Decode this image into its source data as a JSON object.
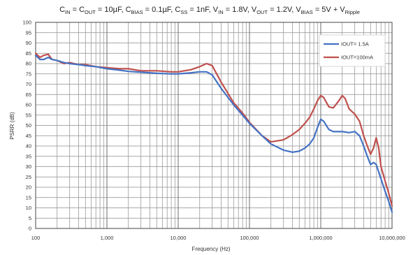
{
  "chart_data": {
    "type": "line",
    "title": {
      "parts": [
        {
          "t": "C",
          "sub": "IN"
        },
        {
          "t": " = C",
          "sub": "OUT"
        },
        {
          "t": " = 10µF, C",
          "sub": "BIAS"
        },
        {
          "t": " = 0.1µF, C",
          "sub": "SS"
        },
        {
          "t": " = 1nF, V",
          "sub": "IN"
        },
        {
          "t": " = 1.8V, V",
          "sub": "OUT"
        },
        {
          "t": " = 1.2V, V",
          "sub": "BIAS"
        },
        {
          "t": " = 5V + V",
          "sub": "Ripple"
        }
      ]
    },
    "xlabel": "Frequency (Hz)",
    "ylabel": "PSRR (dB)",
    "xscale": "log",
    "xlim": [
      100,
      10000000
    ],
    "ylim": [
      0,
      100
    ],
    "ytick_step": 5,
    "x_tick_labels": [
      "100",
      "1,000",
      "10,000",
      "100,000",
      "1,000,000",
      "10,000,000"
    ],
    "y_tick_labels": [
      "0",
      "5",
      "10",
      "15",
      "20",
      "25",
      "30",
      "35",
      "40",
      "45",
      "50",
      "55",
      "60",
      "65",
      "70",
      "75",
      "80",
      "85",
      "90",
      "95",
      "100"
    ],
    "grid": true,
    "legend_position": "top-right",
    "series": [
      {
        "name": "IOUT= 1.5A",
        "color": "#4472C4",
        "points": [
          [
            100,
            84
          ],
          [
            115,
            82
          ],
          [
            130,
            82
          ],
          [
            150,
            83
          ],
          [
            170,
            82
          ],
          [
            200,
            81.5
          ],
          [
            250,
            80.5
          ],
          [
            300,
            80
          ],
          [
            400,
            79.5
          ],
          [
            500,
            79
          ],
          [
            700,
            78.5
          ],
          [
            1000,
            77.5
          ],
          [
            1500,
            76.8
          ],
          [
            2000,
            76.2
          ],
          [
            3000,
            75.8
          ],
          [
            5000,
            75.3
          ],
          [
            8000,
            75
          ],
          [
            10000,
            75
          ],
          [
            15000,
            75.5
          ],
          [
            20000,
            76
          ],
          [
            25000,
            76
          ],
          [
            30000,
            74.5
          ],
          [
            40000,
            68
          ],
          [
            60000,
            60
          ],
          [
            80000,
            55
          ],
          [
            100000,
            51
          ],
          [
            150000,
            45
          ],
          [
            200000,
            41
          ],
          [
            300000,
            38
          ],
          [
            400000,
            37
          ],
          [
            500000,
            37.5
          ],
          [
            600000,
            39
          ],
          [
            700000,
            41
          ],
          [
            800000,
            44
          ],
          [
            900000,
            49
          ],
          [
            1000000,
            53
          ],
          [
            1100000,
            52
          ],
          [
            1300000,
            48
          ],
          [
            1500000,
            47
          ],
          [
            2000000,
            47
          ],
          [
            2500000,
            46.5
          ],
          [
            3000000,
            47
          ],
          [
            3500000,
            45
          ],
          [
            4000000,
            40
          ],
          [
            4500000,
            35
          ],
          [
            5000000,
            31
          ],
          [
            5500000,
            32
          ],
          [
            6000000,
            31
          ],
          [
            7000000,
            24
          ],
          [
            8000000,
            18
          ],
          [
            9000000,
            13
          ],
          [
            10000000,
            8
          ]
        ]
      },
      {
        "name": "IOUT=100mA",
        "color": "#C0504D",
        "points": [
          [
            100,
            85
          ],
          [
            115,
            83
          ],
          [
            130,
            84
          ],
          [
            150,
            84.5
          ],
          [
            170,
            82
          ],
          [
            200,
            81.5
          ],
          [
            250,
            80
          ],
          [
            300,
            80.5
          ],
          [
            400,
            79.5
          ],
          [
            500,
            79.5
          ],
          [
            700,
            78.5
          ],
          [
            1000,
            78
          ],
          [
            1500,
            77.5
          ],
          [
            2000,
            77.5
          ],
          [
            3000,
            76.5
          ],
          [
            5000,
            76.5
          ],
          [
            8000,
            76
          ],
          [
            10000,
            76
          ],
          [
            15000,
            77
          ],
          [
            20000,
            78.5
          ],
          [
            25000,
            80
          ],
          [
            30000,
            79
          ],
          [
            40000,
            71
          ],
          [
            60000,
            61
          ],
          [
            80000,
            56
          ],
          [
            100000,
            51.5
          ],
          [
            150000,
            45
          ],
          [
            200000,
            42
          ],
          [
            300000,
            43
          ],
          [
            400000,
            45.5
          ],
          [
            500000,
            48
          ],
          [
            600000,
            51
          ],
          [
            700000,
            54
          ],
          [
            800000,
            58
          ],
          [
            900000,
            62
          ],
          [
            1000000,
            64.5
          ],
          [
            1100000,
            63.5
          ],
          [
            1300000,
            59
          ],
          [
            1500000,
            58.5
          ],
          [
            1800000,
            62
          ],
          [
            2000000,
            64.5
          ],
          [
            2200000,
            63
          ],
          [
            2500000,
            58
          ],
          [
            3000000,
            55.5
          ],
          [
            3500000,
            52
          ],
          [
            4000000,
            45
          ],
          [
            4500000,
            40
          ],
          [
            5000000,
            36
          ],
          [
            5500000,
            39
          ],
          [
            6000000,
            44
          ],
          [
            6500000,
            39
          ],
          [
            7000000,
            30
          ],
          [
            8000000,
            23
          ],
          [
            9000000,
            17
          ],
          [
            10000000,
            11
          ]
        ]
      }
    ]
  }
}
